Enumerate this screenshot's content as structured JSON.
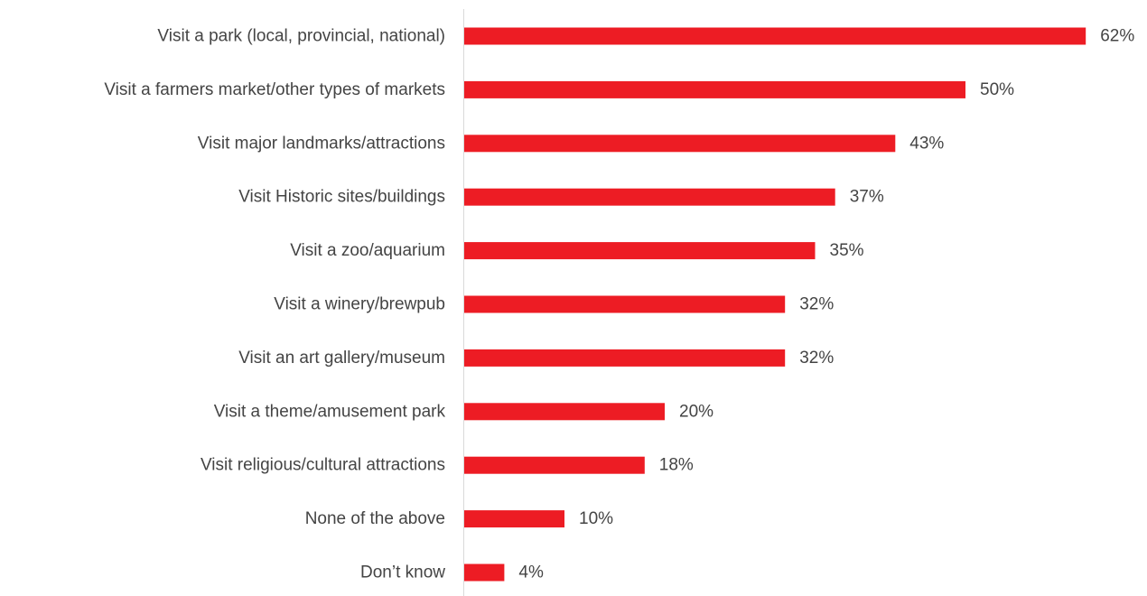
{
  "chart_data": {
    "type": "bar",
    "orientation": "horizontal",
    "categories": [
      "Visit a park (local, provincial, national)",
      "Visit a farmers market/other types of markets",
      "Visit major landmarks/attractions",
      "Visit Historic sites/buildings",
      "Visit a zoo/aquarium",
      "Visit a winery/brewpub",
      "Visit an art gallery/museum",
      "Visit a theme/amusement park",
      "Visit religious/cultural attractions",
      "None of the above",
      "Don’t know"
    ],
    "values": [
      62,
      50,
      43,
      37,
      35,
      32,
      32,
      20,
      18,
      10,
      4
    ],
    "value_labels": [
      "62%",
      "50%",
      "43%",
      "37%",
      "35%",
      "32%",
      "32%",
      "20%",
      "18%",
      "10%",
      "4%"
    ],
    "value_suffix": "%",
    "title": "",
    "xlabel": "",
    "ylabel": "",
    "grid": false,
    "legend": "none",
    "colors": {
      "bar": "#ed1c24",
      "axis": "#d9d9d9",
      "text": "#444444"
    }
  }
}
